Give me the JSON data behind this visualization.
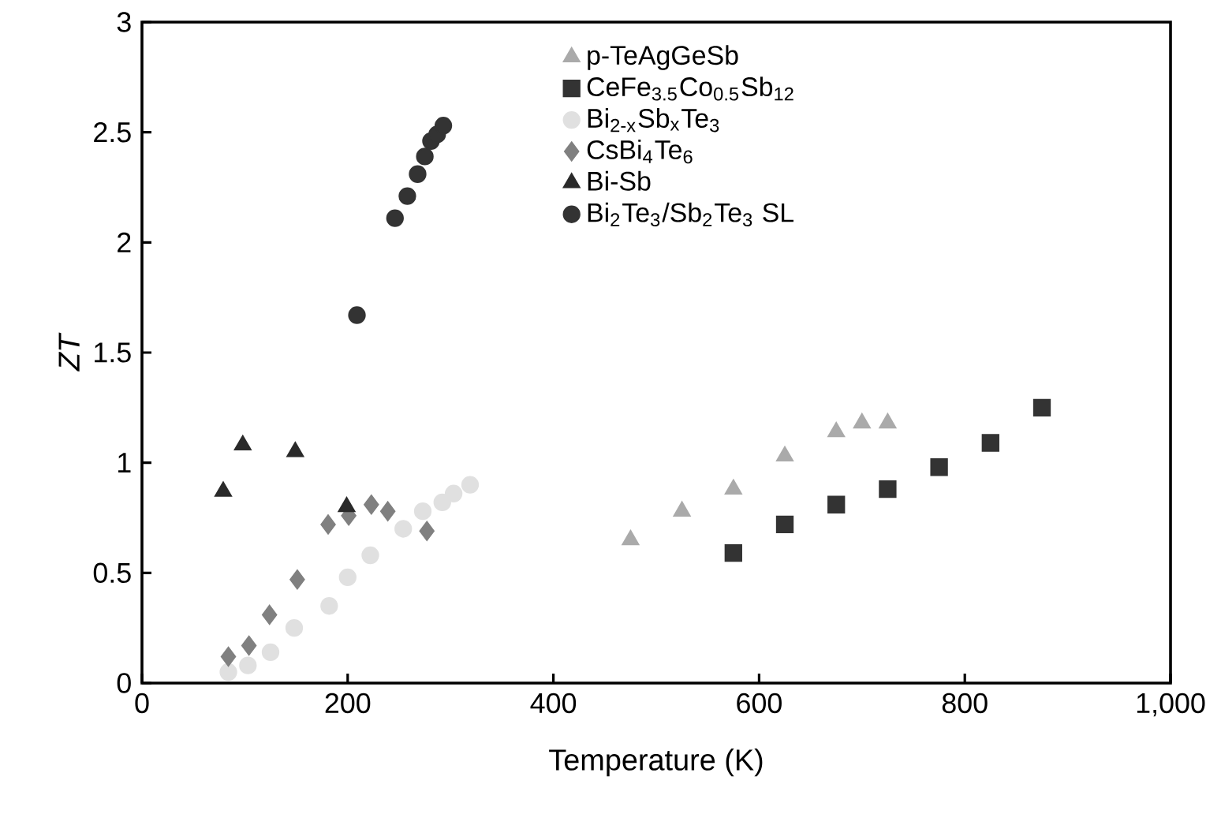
{
  "chart_data": {
    "type": "scatter",
    "xlabel": "Temperature (K)",
    "ylabel": "ZT",
    "xlim": [
      0,
      1000
    ],
    "ylim": [
      0,
      3
    ],
    "xticks": [
      0,
      200,
      400,
      600,
      800,
      {
        "value": 1000,
        "label": "1,000"
      }
    ],
    "yticks": [
      0,
      0.5,
      1,
      1.5,
      2,
      2.5,
      3
    ],
    "legend": "top right",
    "grid": false,
    "series": [
      {
        "name": "p-TeAgGeSb",
        "color": "#aaaaaa",
        "marker": "triangle",
        "x": [
          475,
          525,
          575,
          625,
          675,
          700,
          725
        ],
        "values": [
          0.65,
          0.78,
          0.88,
          1.03,
          1.14,
          1.18,
          1.18
        ]
      },
      {
        "name": "CeFe$_{3.5}$Co$_{0.5}$Sb$_{12}$",
        "color": "#333333",
        "marker": "square",
        "x": [
          575,
          625,
          675,
          725,
          775,
          825,
          875
        ],
        "values": [
          0.59,
          0.72,
          0.81,
          0.88,
          0.98,
          1.09,
          1.25
        ]
      },
      {
        "name": "Bi$_{2-x}$Sb$_{x}$Te$_{3}$",
        "color": "#e0e0e0",
        "marker": "circle",
        "x": [
          84,
          103,
          125,
          148,
          182,
          200,
          222,
          254,
          273,
          292,
          303,
          319
        ],
        "values": [
          0.05,
          0.08,
          0.14,
          0.25,
          0.35,
          0.48,
          0.58,
          0.7,
          0.78,
          0.82,
          0.86,
          0.9
        ]
      },
      {
        "name": "CsBi$_{4}$Te$_{6}$",
        "color": "#808080",
        "marker": "diamond",
        "x": [
          84,
          104,
          124,
          151,
          181,
          201,
          223,
          239,
          277
        ],
        "values": [
          0.12,
          0.17,
          0.31,
          0.47,
          0.72,
          0.76,
          0.81,
          0.78,
          0.69
        ]
      },
      {
        "name": "Bi-Sb",
        "color": "#2a2a2a",
        "marker": "triangle",
        "x": [
          79,
          98,
          149,
          199
        ],
        "values": [
          0.87,
          1.08,
          1.05,
          0.8
        ]
      },
      {
        "name": "Bi$_{2}$Te$_{3}$/Sb$_{2}$Te$_{3}$ SL",
        "color": "#333333",
        "marker": "circle",
        "x": [
          209,
          246,
          258,
          268,
          275,
          281,
          287,
          293
        ],
        "values": [
          1.67,
          2.11,
          2.21,
          2.31,
          2.39,
          2.46,
          2.49,
          2.53
        ]
      }
    ]
  }
}
